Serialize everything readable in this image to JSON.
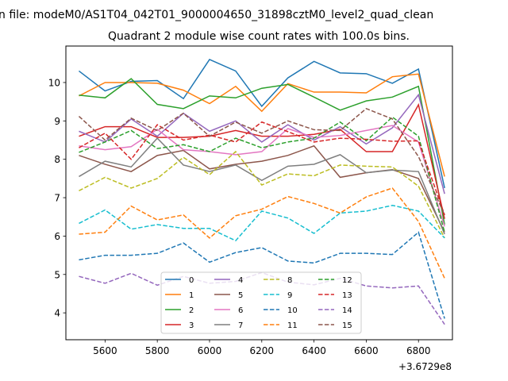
{
  "suptitle": "n file: modeM0/AS1T04_042T01_9000004650_31898cztM0_level2_quad_clean",
  "chart_data": {
    "type": "line",
    "title": "Quadrant 2 module wise count rates with 100.0s bins.",
    "xlabel": "",
    "ylabel": "",
    "x_offset_label": "+3.6729e8",
    "xlim": [
      5450,
      6930
    ],
    "ylim": [
      3.3,
      10.95
    ],
    "x_ticks": [
      5600,
      5800,
      6000,
      6200,
      6400,
      6600,
      6800
    ],
    "y_ticks": [
      4,
      5,
      6,
      7,
      8,
      9,
      10
    ],
    "x": [
      5500,
      5600,
      5700,
      5800,
      5900,
      6000,
      6100,
      6200,
      6300,
      6400,
      6500,
      6600,
      6700,
      6800,
      6900
    ],
    "legend_position": "lower-center",
    "series": [
      {
        "name": "0",
        "color": "#1f77b4",
        "dash": "solid",
        "values": [
          10.3,
          9.78,
          10.03,
          10.05,
          9.58,
          10.6,
          10.3,
          9.38,
          10.12,
          10.55,
          10.25,
          10.23,
          9.98,
          10.35,
          7.25
        ]
      },
      {
        "name": "1",
        "color": "#ff7f0e",
        "dash": "solid",
        "values": [
          9.65,
          10.0,
          10.0,
          9.98,
          9.8,
          9.45,
          9.9,
          9.25,
          9.97,
          9.75,
          9.75,
          9.73,
          10.15,
          10.22,
          7.55
        ]
      },
      {
        "name": "2",
        "color": "#2ca02c",
        "dash": "solid",
        "values": [
          9.67,
          9.6,
          10.1,
          9.43,
          9.32,
          9.65,
          9.6,
          9.85,
          9.95,
          9.62,
          9.28,
          9.52,
          9.62,
          9.9,
          6.3
        ]
      },
      {
        "name": "3",
        "color": "#d62728",
        "dash": "solid",
        "values": [
          8.6,
          8.85,
          8.85,
          8.57,
          8.57,
          8.6,
          8.75,
          8.6,
          8.6,
          8.65,
          8.78,
          8.2,
          8.2,
          9.42,
          6.45
        ]
      },
      {
        "name": "4",
        "color": "#9467bd",
        "dash": "solid",
        "values": [
          8.73,
          8.45,
          9.05,
          8.6,
          9.2,
          8.73,
          9.0,
          8.45,
          8.9,
          8.5,
          8.85,
          8.4,
          8.82,
          9.68,
          7.1
        ]
      },
      {
        "name": "5",
        "color": "#8c564b",
        "dash": "solid",
        "values": [
          8.1,
          7.87,
          7.68,
          8.1,
          8.23,
          7.75,
          7.87,
          7.95,
          8.1,
          8.35,
          7.53,
          7.65,
          7.73,
          7.5,
          6.1
        ]
      },
      {
        "name": "6",
        "color": "#e377c2",
        "dash": "solid",
        "values": [
          8.35,
          8.25,
          8.33,
          8.78,
          8.25,
          8.2,
          8.12,
          8.2,
          8.8,
          8.57,
          8.62,
          8.75,
          8.88,
          8.45,
          6.25
        ]
      },
      {
        "name": "7",
        "color": "#7f7f7f",
        "dash": "solid",
        "values": [
          7.55,
          7.95,
          7.8,
          8.55,
          7.85,
          7.68,
          7.85,
          7.45,
          7.82,
          7.87,
          8.12,
          7.65,
          7.72,
          7.68,
          6.05
        ]
      },
      {
        "name": "8",
        "color": "#bcbd22",
        "dash": "dashed",
        "values": [
          7.18,
          7.53,
          7.25,
          7.5,
          8.05,
          7.6,
          8.2,
          7.33,
          7.62,
          7.57,
          7.85,
          7.82,
          7.8,
          7.3,
          5.95
        ]
      },
      {
        "name": "9",
        "color": "#17becf",
        "dash": "dashed",
        "values": [
          6.33,
          6.68,
          6.18,
          6.3,
          6.2,
          6.2,
          5.88,
          6.65,
          6.47,
          6.07,
          6.6,
          6.65,
          6.8,
          6.65,
          5.95
        ]
      },
      {
        "name": "10",
        "color": "#1f77b4",
        "dash": "dashed",
        "values": [
          5.38,
          5.5,
          5.5,
          5.55,
          5.82,
          5.32,
          5.57,
          5.7,
          5.35,
          5.3,
          5.55,
          5.55,
          5.52,
          6.1,
          3.85
        ]
      },
      {
        "name": "11",
        "color": "#ff7f0e",
        "dash": "dashed",
        "values": [
          6.05,
          6.1,
          6.78,
          6.42,
          6.55,
          5.95,
          6.53,
          6.7,
          7.03,
          6.85,
          6.6,
          7.02,
          7.25,
          6.38,
          4.9
        ]
      },
      {
        "name": "12",
        "color": "#2ca02c",
        "dash": "dashed",
        "values": [
          8.18,
          8.45,
          8.75,
          8.28,
          8.38,
          8.2,
          8.55,
          8.3,
          8.45,
          8.55,
          8.97,
          8.48,
          9.1,
          8.6,
          6.1
        ]
      },
      {
        "name": "13",
        "color": "#d62728",
        "dash": "dashed",
        "values": [
          8.3,
          8.68,
          8.0,
          8.9,
          8.5,
          8.63,
          8.45,
          8.97,
          8.72,
          8.45,
          8.55,
          8.52,
          8.47,
          8.48,
          6.55
        ]
      },
      {
        "name": "14",
        "color": "#9467bd",
        "dash": "dashed",
        "values": [
          4.95,
          4.77,
          5.03,
          4.72,
          4.95,
          4.77,
          4.82,
          5.05,
          4.8,
          4.73,
          4.9,
          4.7,
          4.65,
          4.7,
          3.7
        ]
      },
      {
        "name": "15",
        "color": "#8c564b",
        "dash": "dashed",
        "values": [
          9.12,
          8.5,
          9.07,
          8.75,
          9.2,
          8.6,
          8.97,
          8.68,
          9.0,
          8.77,
          8.75,
          9.32,
          9.05,
          8.07,
          6.55
        ]
      }
    ]
  }
}
